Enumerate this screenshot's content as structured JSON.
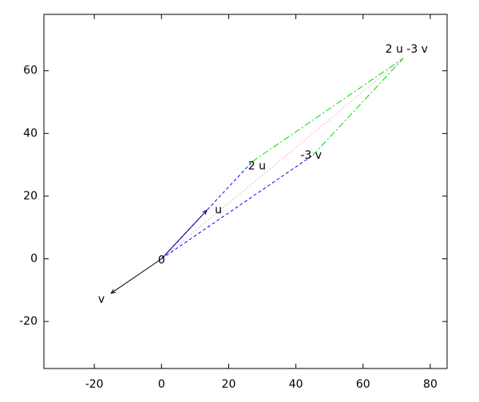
{
  "chart_data": {
    "type": "vector",
    "xlim": [
      -35,
      85
    ],
    "ylim": [
      -35,
      78
    ],
    "xticks": [
      -20,
      0,
      20,
      40,
      60,
      80
    ],
    "yticks": [
      -20,
      0,
      20,
      40,
      60
    ],
    "points": [
      {
        "label": "0",
        "x": 0,
        "y": 0
      },
      {
        "label": "u",
        "x": 13.5,
        "y": 15.5
      },
      {
        "label": "v",
        "x": -15,
        "y": -11
      },
      {
        "label": "2 u",
        "x": 27,
        "y": 31
      },
      {
        "label": "-3 v",
        "x": 45,
        "y": 33
      },
      {
        "label": "2 u -3 v",
        "x": 72,
        "y": 64
      }
    ],
    "segments": [
      {
        "x": [
          0,
          27
        ],
        "y": [
          0,
          31
        ],
        "color": "#0000ff",
        "style": "dashed"
      },
      {
        "x": [
          0,
          45
        ],
        "y": [
          0,
          33
        ],
        "color": "#0000ff",
        "style": "dashed"
      },
      {
        "x": [
          27,
          72
        ],
        "y": [
          31,
          64
        ],
        "color": "#00dd00",
        "style": "dashdot"
      },
      {
        "x": [
          45,
          72
        ],
        "y": [
          33,
          64
        ],
        "color": "#00dd00",
        "style": "dashdot"
      },
      {
        "x": [
          0,
          72
        ],
        "y": [
          0,
          64
        ],
        "color": "#ff66aa",
        "style": "dotted"
      },
      {
        "x": [
          0,
          13.5
        ],
        "y": [
          0,
          15.5
        ],
        "color": "#000080",
        "style": "solid",
        "arrow": true
      },
      {
        "x": [
          0,
          -15
        ],
        "y": [
          0,
          -11
        ],
        "color": "#000000",
        "style": "solid",
        "arrow": true
      }
    ]
  }
}
